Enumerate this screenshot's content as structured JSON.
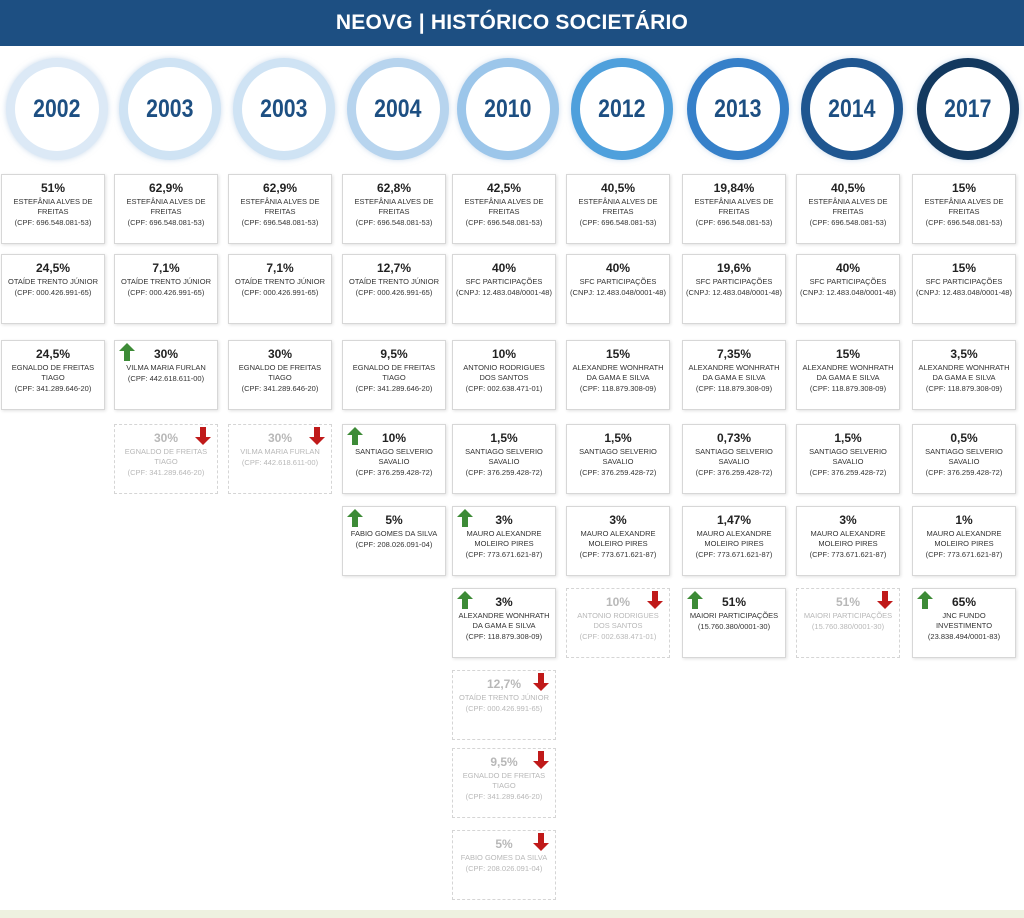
{
  "header": {
    "title": "NEOVG | HISTÓRICO SOCIETÁRIO"
  },
  "colors": {
    "header_bg": "#1d4f82",
    "up_arrow": "#3d8b37",
    "down_arrow": "#c01a1a"
  },
  "columns": [
    {
      "year": "2002",
      "ring": "#dce9f6",
      "cards": [
        {
          "pct": "51%",
          "name": "ESTEFÂNIA ALVES DE FREITAS",
          "doc": "(CPF: 696.548.081-53)"
        },
        {
          "pct": "24,5%",
          "name": "OTAÍDE TRENTO JÚNIOR",
          "doc": "(CPF: 000.426.991-65)"
        },
        {
          "pct": "24,5%",
          "name": "EGNALDO DE FREITAS TIAGO",
          "doc": "(CPF: 341.289.646-20)"
        }
      ]
    },
    {
      "year": "2003",
      "ring": "#cfe3f4",
      "cards": [
        {
          "pct": "62,9%",
          "name": "ESTEFÂNIA ALVES DE FREITAS",
          "doc": "(CPF: 696.548.081-53)"
        },
        {
          "pct": "7,1%",
          "name": "OTAÍDE TRENTO JÚNIOR",
          "doc": "(CPF: 000.426.991-65)"
        },
        {
          "pct": "30%",
          "name": "VILMA MARIA FURLAN",
          "doc": "(CPF: 442.618.611-00)",
          "arrow": "up"
        },
        {
          "pct": "30%",
          "name": "EGNALDO DE FREITAS TIAGO",
          "doc": "(CPF: 341.289.646-20)",
          "arrow": "down",
          "ghost": true
        }
      ]
    },
    {
      "year": "2003",
      "ring": "#cfe3f4",
      "cards": [
        {
          "pct": "62,9%",
          "name": "ESTEFÂNIA ALVES DE FREITAS",
          "doc": "(CPF: 696.548.081-53)"
        },
        {
          "pct": "7,1%",
          "name": "OTAÍDE TRENTO JÚNIOR",
          "doc": "(CPF: 000.426.991-65)"
        },
        {
          "pct": "30%",
          "name": "EGNALDO DE FREITAS TIAGO",
          "doc": "(CPF: 341.289.646-20)"
        },
        {
          "pct": "30%",
          "name": "VILMA MARIA FURLAN",
          "doc": "(CPF: 442.618.611-00)",
          "arrow": "down",
          "ghost": true
        }
      ]
    },
    {
      "year": "2004",
      "ring": "#b7d4ee",
      "cards": [
        {
          "pct": "62,8%",
          "name": "ESTEFÂNIA ALVES DE FREITAS",
          "doc": "(CPF: 696.548.081-53)"
        },
        {
          "pct": "12,7%",
          "name": "OTAÍDE TRENTO JÚNIOR",
          "doc": "(CPF: 000.426.991-65)"
        },
        {
          "pct": "9,5%",
          "name": "EGNALDO DE FREITAS TIAGO",
          "doc": "(CPF: 341.289.646-20)"
        },
        {
          "pct": "10%",
          "name": "SANTIAGO SELVERIO SAVALIO",
          "doc": "(CPF: 376.259.428-72)",
          "arrow": "up"
        },
        {
          "pct": "5%",
          "name": "FABIO GOMES DA SILVA",
          "doc": "(CPF: 208.026.091-04)",
          "arrow": "up"
        }
      ]
    },
    {
      "year": "2010",
      "ring": "#9cc6ea",
      "cards": [
        {
          "pct": "42,5%",
          "name": "ESTEFÂNIA ALVES DE FREITAS",
          "doc": "(CPF: 696.548.081-53)"
        },
        {
          "pct": "40%",
          "name": "SFC PARTICIPAÇÕES",
          "doc": "(CNPJ: 12.483.048/0001-48)"
        },
        {
          "pct": "10%",
          "name": "ANTONIO RODRIGUES DOS SANTOS",
          "doc": "(CPF: 002.638.471-01)"
        },
        {
          "pct": "1,5%",
          "name": "SANTIAGO SELVERIO SAVALIO",
          "doc": "(CPF: 376.259.428-72)"
        },
        {
          "pct": "3%",
          "name": "MAURO ALEXANDRE MOLEIRO PIRES",
          "doc": "(CPF: 773.671.621-87)",
          "arrow": "up"
        },
        {
          "pct": "3%",
          "name": "ALEXANDRE WONHRATH DA GAMA E SILVA",
          "doc": "(CPF: 118.879.308-09)",
          "arrow": "up"
        },
        {
          "pct": "12,7%",
          "name": "OTAÍDE TRENTO JÚNIOR",
          "doc": "(CPF: 000.426.991-65)",
          "arrow": "down",
          "ghost": true
        },
        {
          "pct": "9,5%",
          "name": "EGNALDO DE FREITAS TIAGO",
          "doc": "(CPF: 341.289.646-20)",
          "arrow": "down",
          "ghost": true
        },
        {
          "pct": "5%",
          "name": "FABIO GOMES DA SILVA",
          "doc": "(CPF: 208.026.091-04)",
          "arrow": "down",
          "ghost": true
        }
      ]
    },
    {
      "year": "2012",
      "ring": "#4fa0dc",
      "cards": [
        {
          "pct": "40,5%",
          "name": "ESTEFÂNIA ALVES DE FREITAS",
          "doc": "(CPF: 696.548.081-53)"
        },
        {
          "pct": "40%",
          "name": "SFC PARTICIPAÇÕES",
          "doc": "(CNPJ: 12.483.048/0001-48)"
        },
        {
          "pct": "15%",
          "name": "ALEXANDRE WONHRATH DA GAMA E SILVA",
          "doc": "(CPF: 118.879.308-09)"
        },
        {
          "pct": "1,5%",
          "name": "SANTIAGO SELVERIO SAVALIO",
          "doc": "(CPF: 376.259.428-72)"
        },
        {
          "pct": "3%",
          "name": "MAURO ALEXANDRE MOLEIRO PIRES",
          "doc": "(CPF: 773.671.621-87)"
        },
        {
          "pct": "10%",
          "name": "ANTONIO RODRIGUES DOS SANTOS",
          "doc": "(CPF: 002.638.471-01)",
          "arrow": "down",
          "ghost": true
        }
      ]
    },
    {
      "year": "2013",
      "ring": "#3680c9",
      "cards": [
        {
          "pct": "19,84%",
          "name": "ESTEFÂNIA ALVES DE FREITAS",
          "doc": "(CPF: 696.548.081-53)"
        },
        {
          "pct": "19,6%",
          "name": "SFC PARTICIPAÇÕES",
          "doc": "(CNPJ: 12.483.048/0001-48)"
        },
        {
          "pct": "7,35%",
          "name": "ALEXANDRE WONHRATH DA GAMA E SILVA",
          "doc": "(CPF: 118.879.308-09)"
        },
        {
          "pct": "0,73%",
          "name": "SANTIAGO SELVERIO SAVALIO",
          "doc": "(CPF: 376.259.428-72)"
        },
        {
          "pct": "1,47%",
          "name": "MAURO ALEXANDRE MOLEIRO PIRES",
          "doc": "(CPF: 773.671.621-87)"
        },
        {
          "pct": "51%",
          "name": "MAIORI PARTICIPAÇÕES",
          "doc": "(15.760.380/0001-30)",
          "arrow": "up"
        }
      ]
    },
    {
      "year": "2014",
      "ring": "#1f5690",
      "cards": [
        {
          "pct": "40,5%",
          "name": "ESTEFÂNIA ALVES DE FREITAS",
          "doc": "(CPF: 696.548.081-53)"
        },
        {
          "pct": "40%",
          "name": "SFC PARTICIPAÇÕES",
          "doc": "(CNPJ: 12.483.048/0001-48)"
        },
        {
          "pct": "15%",
          "name": "ALEXANDRE WONHRATH DA GAMA E SILVA",
          "doc": "(CPF: 118.879.308-09)"
        },
        {
          "pct": "1,5%",
          "name": "SANTIAGO SELVERIO SAVALIO",
          "doc": "(CPF: 376.259.428-72)"
        },
        {
          "pct": "3%",
          "name": "MAURO ALEXANDRE MOLEIRO PIRES",
          "doc": "(CPF: 773.671.621-87)"
        },
        {
          "pct": "51%",
          "name": "MAIORI PARTICIPAÇÕES",
          "doc": "(15.760.380/0001-30)",
          "arrow": "down",
          "ghost": true
        }
      ]
    },
    {
      "year": "2017",
      "ring": "#13395f",
      "cards": [
        {
          "pct": "15%",
          "name": "ESTEFÂNIA ALVES DE FREITAS",
          "doc": "(CPF: 696.548.081-53)"
        },
        {
          "pct": "15%",
          "name": "SFC PARTICIPAÇÕES",
          "doc": "(CNPJ: 12.483.048/0001-48)"
        },
        {
          "pct": "3,5%",
          "name": "ALEXANDRE WONHRATH DA GAMA E SILVA",
          "doc": "(CPF: 118.879.308-09)"
        },
        {
          "pct": "0,5%",
          "name": "SANTIAGO SELVERIO SAVALIO",
          "doc": "(CPF: 376.259.428-72)"
        },
        {
          "pct": "1%",
          "name": "MAURO ALEXANDRE MOLEIRO PIRES",
          "doc": "(CPF: 773.671.621-87)"
        },
        {
          "pct": "65%",
          "name": "JNC FUNDO INVESTIMENTO",
          "doc": "(23.838.494/0001-83)",
          "arrow": "up"
        }
      ]
    }
  ]
}
